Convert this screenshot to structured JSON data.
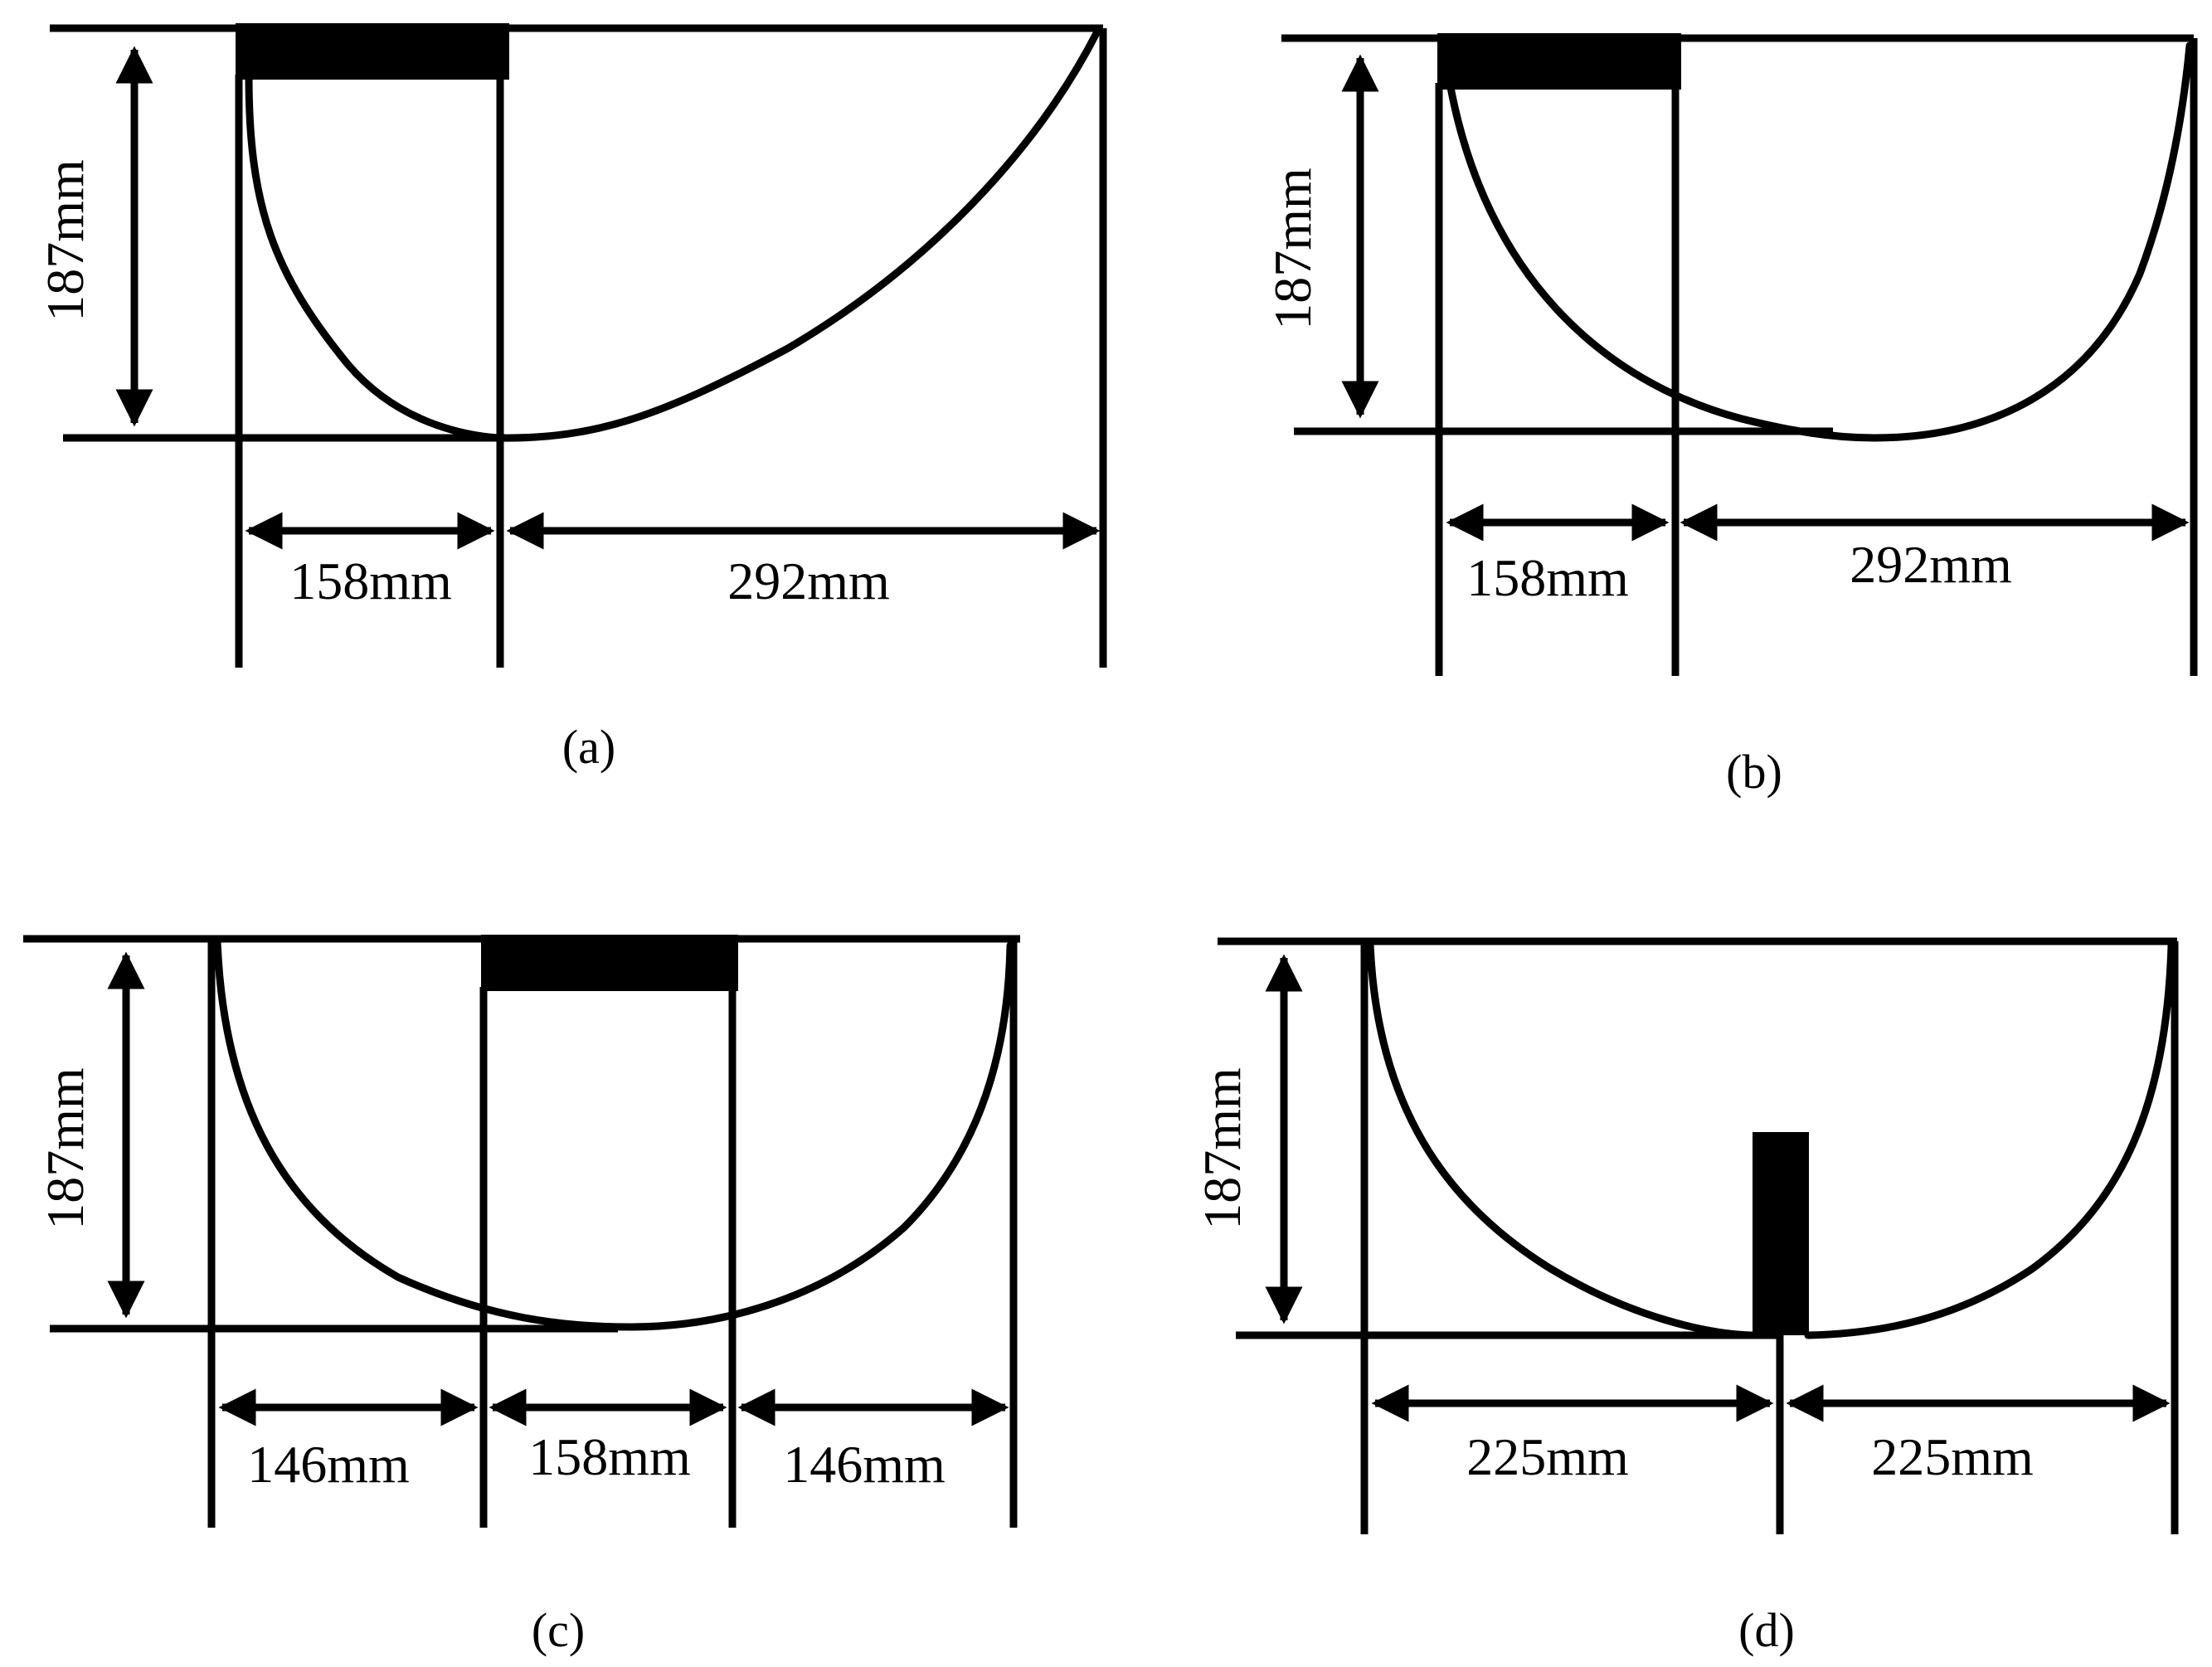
{
  "panels": [
    {
      "id": "a",
      "caption": "(a)",
      "height_label": "187mm",
      "width_labels": [
        "158mm",
        "292mm"
      ]
    },
    {
      "id": "b",
      "caption": "(b)",
      "height_label": "187mm",
      "width_labels": [
        "158mm",
        "292mm"
      ]
    },
    {
      "id": "c",
      "caption": "(c)",
      "height_label": "187mm",
      "width_labels": [
        "146mm",
        "158mm",
        "146mm"
      ]
    },
    {
      "id": "d",
      "caption": "(d)",
      "height_label": "187mm",
      "width_labels": [
        "225mm",
        "225mm"
      ]
    }
  ]
}
